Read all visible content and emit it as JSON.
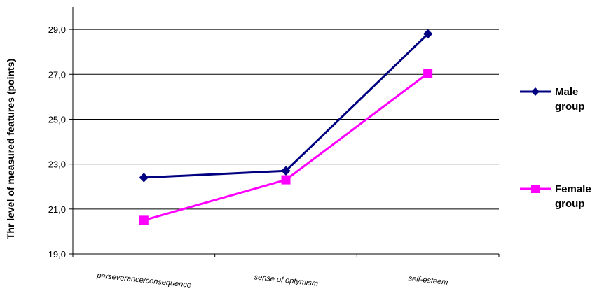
{
  "chart_data": {
    "type": "line",
    "categories": [
      "perseverance/consequence",
      "sense of optymism",
      "self-esteem"
    ],
    "series": [
      {
        "name_lines": [
          "Male",
          "group"
        ],
        "values": [
          22.4,
          22.7,
          28.8
        ],
        "color": "#000080",
        "marker": "diamond"
      },
      {
        "name_lines": [
          "Female",
          "group"
        ],
        "values": [
          20.5,
          22.3,
          27.05
        ],
        "color": "#ff00ff",
        "marker": "square"
      }
    ],
    "ylabel": "Thr level of measured features (points)",
    "xlabel": "",
    "ylim": [
      19,
      30
    ],
    "yticks": [
      "19,0",
      "21,0",
      "23,0",
      "25,0",
      "27,0",
      "29,0"
    ],
    "gridlines": true,
    "legend_position": "right"
  }
}
